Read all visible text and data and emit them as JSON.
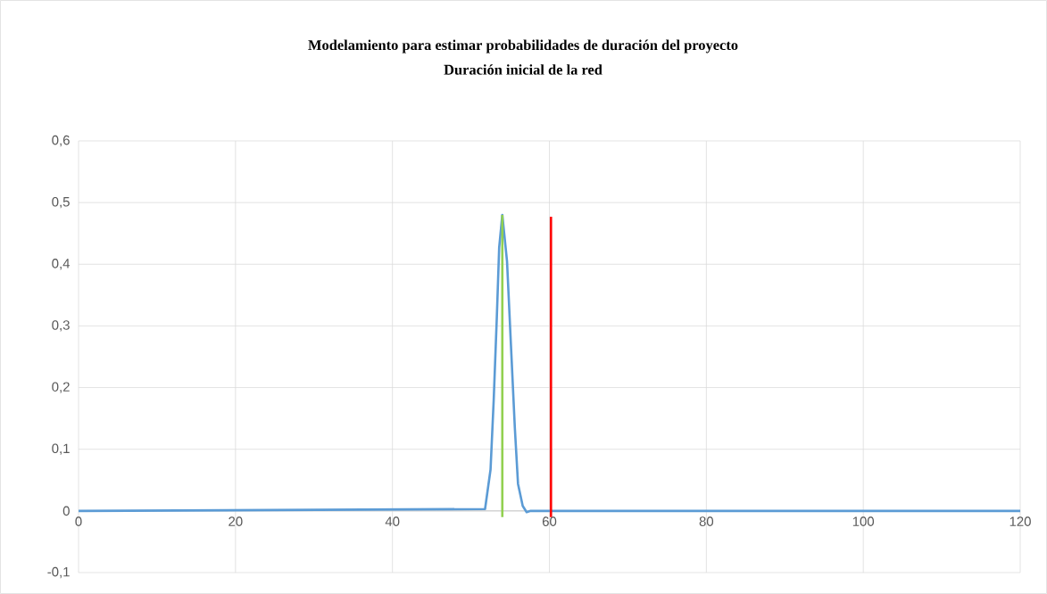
{
  "chart_data": {
    "type": "line",
    "title": "Modelamiento para estimar probabilidades de duración del proyecto",
    "subtitle": "Duración inicial de la red",
    "xlim": [
      0,
      120
    ],
    "xticks": [
      0,
      20,
      40,
      60,
      80,
      100,
      120
    ],
    "ylim": [
      -0.1,
      0.6
    ],
    "yticks": [
      {
        "value": -0.1,
        "label": "-0,1"
      },
      0,
      {
        "value": 0.1,
        "label": "0,1"
      },
      {
        "value": 0.2,
        "label": "0,2"
      },
      {
        "value": 0.3,
        "label": "0,3"
      },
      {
        "value": 0.4,
        "label": "0,4"
      },
      {
        "value": 0.5,
        "label": "0,5"
      },
      {
        "value": 0.6,
        "label": "0,6"
      }
    ],
    "grid": true,
    "marker": "none",
    "line_style": "solid",
    "series": [
      {
        "color": "#5b9bd5",
        "x": [
          0,
          51.8,
          52.5,
          52.9,
          53.3,
          53.6,
          54.0,
          54.6,
          55.1,
          55.6,
          56.0,
          56.6,
          57.1,
          57.6,
          120
        ],
        "values": [
          0,
          0.003,
          0.067,
          0.179,
          0.314,
          0.427,
          0.48,
          0.405,
          0.269,
          0.134,
          0.044,
          0.008,
          -0.002,
          0,
          0
        ]
      },
      {
        "color": "#92d050",
        "x": [
          54.0,
          54.0
        ],
        "values": [
          -0.01,
          0.48
        ]
      },
      {
        "color": "#ff0000",
        "x": [
          60.2,
          60.2
        ],
        "values": [
          -0.01,
          0.477
        ]
      }
    ]
  }
}
